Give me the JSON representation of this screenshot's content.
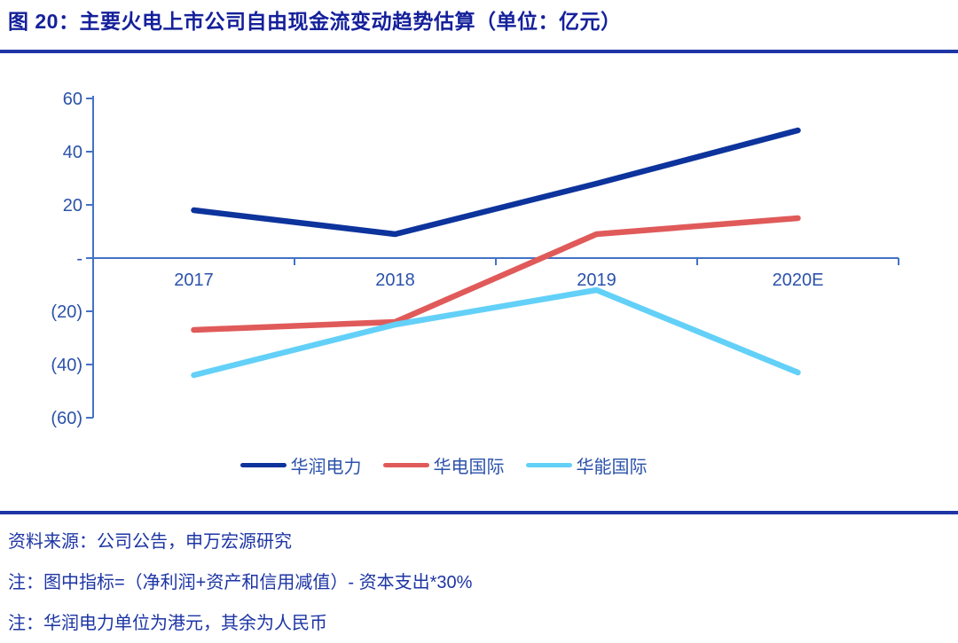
{
  "figure": {
    "title": "图 20：主要火电上市公司自由现金流变动趋势估算（单位：亿元）"
  },
  "chart_data": {
    "type": "line",
    "title": "图 20：主要火电上市公司自由现金流变动趋势估算（单位：亿元）",
    "unit": "亿元",
    "categories": [
      "2017",
      "2018",
      "2019",
      "2020E"
    ],
    "series": [
      {
        "name": "华润电力",
        "color": "#0D339C",
        "values": [
          18,
          9,
          28,
          48
        ]
      },
      {
        "name": "华电国际",
        "color": "#E05A5A",
        "values": [
          -27,
          -24,
          9,
          15
        ]
      },
      {
        "name": "华能国际",
        "color": "#63D0F8",
        "values": [
          -44,
          -25,
          -12,
          -43
        ]
      }
    ],
    "xlabel": "",
    "ylabel": "",
    "ylim": [
      -60,
      60
    ],
    "ytick_step": 20,
    "ytick_labels": [
      "60",
      "40",
      "20",
      "-",
      "(20)",
      "(40)",
      "(60)"
    ],
    "zero_label": "-",
    "negative_format": "parentheses",
    "grid": "off",
    "legend_position": "bottom"
  },
  "footer": {
    "source": "资料来源：公司公告，申万宏源研究",
    "note1": "注：图中指标=（净利润+资产和信用减值）- 资本支出*30%",
    "note2": "注：华润电力单位为港元，其余为人民币"
  },
  "colors": {
    "title_text": "#15209B",
    "rule": "#1E35A6",
    "axis": "#4472C4",
    "axis_label": "#2B52AA",
    "footer_text": "#1D35A4"
  }
}
